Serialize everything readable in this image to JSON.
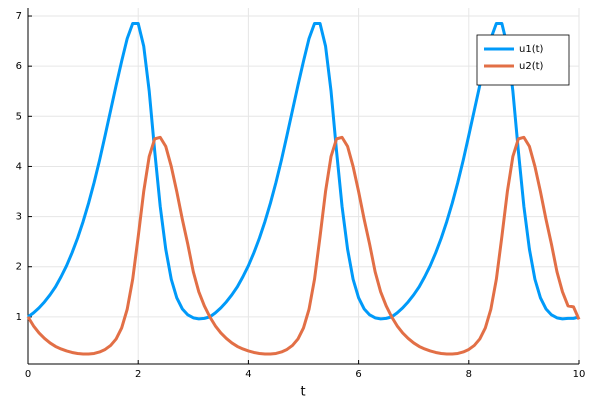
{
  "chart_data": {
    "type": "line",
    "xlabel": "t",
    "x": [
      0,
      0.1,
      0.2,
      0.3,
      0.4,
      0.5,
      0.6,
      0.7,
      0.8,
      0.9,
      1,
      1.1,
      1.2,
      1.3,
      1.4,
      1.5,
      1.6,
      1.7,
      1.8,
      1.9,
      2,
      2.1,
      2.2,
      2.3,
      2.4,
      2.5,
      2.6,
      2.7,
      2.8,
      2.9,
      3,
      3.1,
      3.2,
      3.3,
      3.4,
      3.5,
      3.6,
      3.7,
      3.8,
      3.9,
      4,
      4.1,
      4.2,
      4.3,
      4.4,
      4.5,
      4.6,
      4.7,
      4.8,
      4.9,
      5,
      5.1,
      5.2,
      5.3,
      5.4,
      5.5,
      5.6,
      5.7,
      5.8,
      5.9,
      6,
      6.1,
      6.2,
      6.3,
      6.4,
      6.5,
      6.6,
      6.7,
      6.8,
      6.9,
      7,
      7.1,
      7.2,
      7.3,
      7.4,
      7.5,
      7.6,
      7.7,
      7.8,
      7.9,
      8,
      8.1,
      8.2,
      8.3,
      8.4,
      8.5,
      8.6,
      8.7,
      8.8,
      8.9,
      9,
      9.1,
      9.2,
      9.3,
      9.4,
      9.5,
      9.6,
      9.7,
      9.8,
      9.9,
      10
    ],
    "series": [
      {
        "name": "u1(t)",
        "color": "#009af9",
        "values": [
          1.0,
          1.08,
          1.18,
          1.3,
          1.44,
          1.6,
          1.8,
          2.02,
          2.28,
          2.57,
          2.9,
          3.27,
          3.68,
          4.13,
          4.62,
          5.12,
          5.62,
          6.1,
          6.55,
          6.85,
          6.85,
          6.4,
          5.5,
          4.3,
          3.2,
          2.35,
          1.75,
          1.38,
          1.16,
          1.04,
          0.98,
          0.96,
          0.97,
          1.0,
          1.08,
          1.18,
          1.3,
          1.44,
          1.6,
          1.8,
          2.02,
          2.28,
          2.57,
          2.9,
          3.27,
          3.68,
          4.13,
          4.62,
          5.12,
          5.62,
          6.1,
          6.55,
          6.85,
          6.85,
          6.4,
          5.5,
          4.3,
          3.2,
          2.35,
          1.75,
          1.38,
          1.16,
          1.04,
          0.98,
          0.96,
          0.97,
          1.0,
          1.08,
          1.18,
          1.3,
          1.44,
          1.6,
          1.8,
          2.02,
          2.28,
          2.57,
          2.9,
          3.27,
          3.68,
          4.13,
          4.62,
          5.12,
          5.62,
          6.1,
          6.55,
          6.85,
          6.85,
          6.4,
          5.5,
          4.3,
          3.2,
          2.35,
          1.75,
          1.38,
          1.16,
          1.04,
          0.98,
          0.96,
          0.97,
          0.97,
          1.0
        ]
      },
      {
        "name": "u2(t)",
        "color": "#e26f46",
        "values": [
          1.0,
          0.82,
          0.68,
          0.57,
          0.48,
          0.41,
          0.36,
          0.32,
          0.29,
          0.27,
          0.26,
          0.26,
          0.27,
          0.3,
          0.35,
          0.43,
          0.56,
          0.78,
          1.15,
          1.75,
          2.6,
          3.5,
          4.2,
          4.55,
          4.58,
          4.4,
          4.0,
          3.5,
          2.95,
          2.45,
          1.9,
          1.5,
          1.22,
          1.0,
          0.82,
          0.68,
          0.57,
          0.48,
          0.41,
          0.36,
          0.32,
          0.29,
          0.27,
          0.26,
          0.26,
          0.27,
          0.3,
          0.35,
          0.43,
          0.56,
          0.78,
          1.15,
          1.75,
          2.6,
          3.5,
          4.2,
          4.55,
          4.58,
          4.4,
          4.0,
          3.5,
          2.95,
          2.45,
          1.9,
          1.5,
          1.22,
          1.0,
          0.82,
          0.68,
          0.57,
          0.48,
          0.41,
          0.36,
          0.32,
          0.29,
          0.27,
          0.26,
          0.26,
          0.27,
          0.3,
          0.35,
          0.43,
          0.56,
          0.78,
          1.15,
          1.75,
          2.6,
          3.5,
          4.2,
          4.55,
          4.58,
          4.4,
          4.0,
          3.5,
          2.95,
          2.45,
          1.9,
          1.5,
          1.22,
          1.2,
          0.95
        ]
      }
    ],
    "xlim": [
      0,
      10
    ],
    "ylim": [
      0.06,
      7.16
    ],
    "xticks": [
      0,
      2,
      4,
      6,
      8,
      10
    ],
    "yticks": [
      1,
      2,
      3,
      4,
      5,
      6,
      7
    ],
    "grid": true,
    "legend": "top-right"
  }
}
